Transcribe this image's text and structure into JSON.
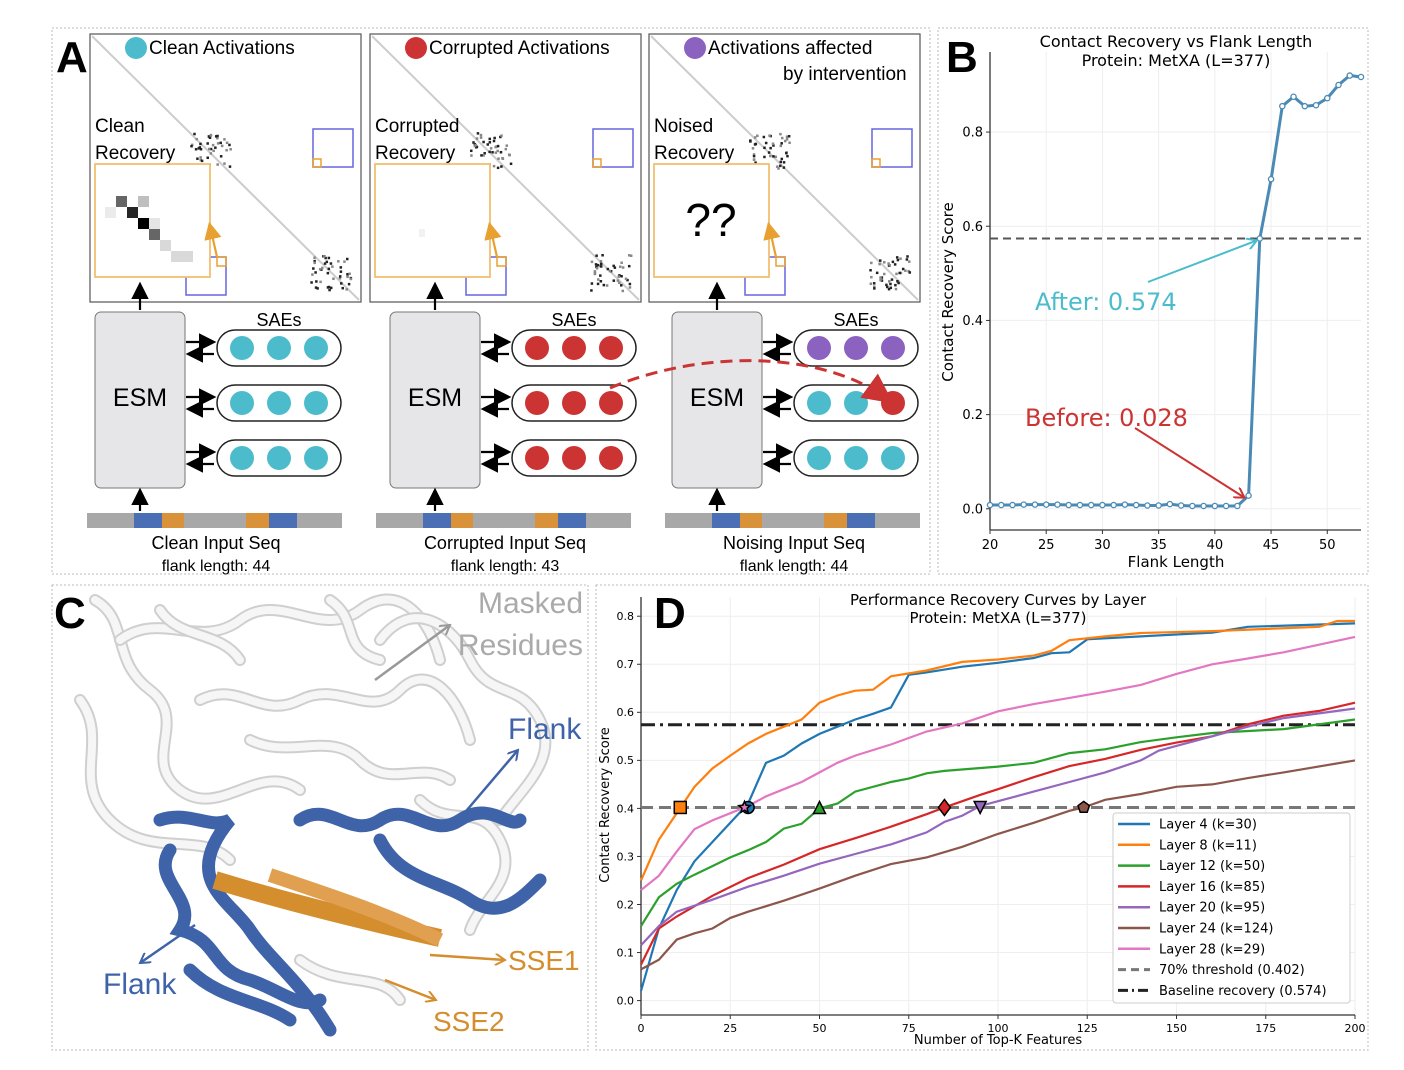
{
  "panel_labels": {
    "a": "A",
    "b": "B",
    "c": "C",
    "d": "D"
  },
  "panel_a": {
    "columns": [
      {
        "title": [
          "Clean Activations"
        ],
        "dot_color": "#4cbccc",
        "recovery_label": [
          "Clean",
          "Recovery"
        ],
        "inset_text": "",
        "esm_label": "ESM",
        "saes_label": "SAEs",
        "sae_rows": [
          [
            "#4cbccc",
            "#4cbccc",
            "#4cbccc"
          ],
          [
            "#4cbccc",
            "#4cbccc",
            "#4cbccc"
          ],
          [
            "#4cbccc",
            "#4cbccc",
            "#4cbccc"
          ]
        ],
        "seq_label": "Clean Input Seq",
        "flank_label": "flank length: 44"
      },
      {
        "title": [
          "Corrupted Activations"
        ],
        "dot_color": "#cc3333",
        "recovery_label": [
          "Corrupted",
          "Recovery"
        ],
        "inset_text": "",
        "esm_label": "ESM",
        "saes_label": "SAEs",
        "sae_rows": [
          [
            "#cc3333",
            "#cc3333",
            "#cc3333"
          ],
          [
            "#cc3333",
            "#cc3333",
            "#cc3333"
          ],
          [
            "#cc3333",
            "#cc3333",
            "#cc3333"
          ]
        ],
        "seq_label": "Corrupted Input Seq",
        "flank_label": "flank length: 43"
      },
      {
        "title": [
          "Activations affected",
          "by intervention"
        ],
        "dot_color": "#8c62c0",
        "recovery_label": [
          "Noised",
          "Recovery"
        ],
        "inset_text": "??",
        "esm_label": "ESM",
        "saes_label": "SAEs",
        "sae_rows": [
          [
            "#8c62c0",
            "#8c62c0",
            "#8c62c0"
          ],
          [
            "#4cbccc",
            "#4cbccc",
            "#cc3333"
          ],
          [
            "#4cbccc",
            "#4cbccc",
            "#4cbccc"
          ]
        ],
        "seq_label": "Noising Input Seq",
        "flank_label": "flank length: 44"
      }
    ],
    "colors": {
      "flank": "#4a6fb5",
      "sse": "#d9923a",
      "seq_bg": "#a8a8a8",
      "intervention_arrow": "#cc3333"
    }
  },
  "panel_c": {
    "labels": {
      "masked": [
        "Masked",
        "Residues"
      ],
      "flank_right": "Flank",
      "flank_left": "Flank",
      "sse1": "SSE1",
      "sse2": "SSE2"
    },
    "colors": {
      "flank": "#3f63a8",
      "sse": "#d58e2e",
      "masked": "#aaaaaa"
    }
  },
  "chart_data": [
    {
      "type": "line",
      "title": [
        "Contact Recovery vs Flank Length",
        "Protein: MetXA (L=377)"
      ],
      "xlabel": "Flank Length",
      "ylabel": "Contact Recovery Score",
      "xlim": [
        20,
        53
      ],
      "ylim": [
        -0.045,
        0.97
      ],
      "xticks": [
        20,
        25,
        30,
        35,
        40,
        45,
        50
      ],
      "yticks": [
        0.0,
        0.2,
        0.4,
        0.6,
        0.8
      ],
      "ytick_labels": [
        "0.0",
        "0.2",
        "0.4",
        "0.6",
        "0.8"
      ],
      "grid": true,
      "color": "#4a8ab5",
      "series": [
        {
          "name": "MetXA",
          "x": [
            20,
            21,
            22,
            23,
            24,
            25,
            26,
            27,
            28,
            29,
            30,
            31,
            32,
            33,
            34,
            35,
            36,
            37,
            38,
            39,
            40,
            41,
            42,
            43,
            44,
            45,
            46,
            47,
            48,
            49,
            50,
            51,
            52,
            53
          ],
          "y": [
            0.008,
            0.008,
            0.008,
            0.009,
            0.009,
            0.009,
            0.009,
            0.008,
            0.008,
            0.008,
            0.008,
            0.008,
            0.009,
            0.008,
            0.007,
            0.007,
            0.01,
            0.007,
            0.006,
            0.006,
            0.006,
            0.006,
            0.006,
            0.028,
            0.574,
            0.7,
            0.855,
            0.875,
            0.855,
            0.857,
            0.872,
            0.9,
            0.92,
            0.917
          ]
        }
      ],
      "hline": {
        "y": 0.574,
        "style": "dashed",
        "color": "#555555"
      },
      "annotations": [
        {
          "text": "After: 0.574",
          "xy": [
            44,
            0.574
          ],
          "color": "#4bbccc"
        },
        {
          "text": "Before: 0.028",
          "xy": [
            42.9,
            0.028
          ],
          "color": "#cc3333"
        }
      ]
    },
    {
      "type": "line",
      "title": [
        "Performance Recovery Curves by Layer",
        "Protein: MetXA (L=377)"
      ],
      "xlabel": "Number of Top-K Features",
      "ylabel": "Contact Recovery Score",
      "xlim": [
        0,
        200
      ],
      "ylim": [
        -0.03,
        0.84
      ],
      "xticks": [
        0,
        25,
        50,
        75,
        100,
        125,
        150,
        175,
        200
      ],
      "yticks": [
        0.0,
        0.1,
        0.2,
        0.3,
        0.4,
        0.5,
        0.6,
        0.7,
        0.8
      ],
      "ytick_labels": [
        "0.0",
        "0.1",
        "0.2",
        "0.3",
        "0.4",
        "0.5",
        "0.6",
        "0.7",
        "0.8"
      ],
      "grid": true,
      "legend": "lower-right",
      "series": [
        {
          "name": "Layer 4 (k=30)",
          "color": "#1f77b4",
          "k": 30,
          "marker": "circle",
          "x": [
            0,
            5,
            10,
            15,
            20,
            25,
            30,
            35,
            40,
            45,
            50,
            55,
            60,
            65,
            70,
            75,
            80,
            90,
            100,
            110,
            115,
            120,
            125,
            140,
            160,
            170,
            200
          ],
          "y": [
            0.02,
            0.15,
            0.23,
            0.29,
            0.33,
            0.37,
            0.41,
            0.495,
            0.51,
            0.535,
            0.555,
            0.57,
            0.585,
            0.597,
            0.61,
            0.678,
            0.683,
            0.695,
            0.703,
            0.713,
            0.723,
            0.725,
            0.752,
            0.758,
            0.766,
            0.778,
            0.785
          ]
        },
        {
          "name": "Layer 8 (k=11)",
          "color": "#ff7f0e",
          "k": 11,
          "marker": "square",
          "x": [
            0,
            5,
            10,
            15,
            20,
            25,
            30,
            35,
            40,
            45,
            50,
            55,
            60,
            65,
            70,
            80,
            90,
            100,
            110,
            115,
            120,
            130,
            140,
            160,
            190,
            195,
            200
          ],
          "y": [
            0.25,
            0.335,
            0.39,
            0.445,
            0.483,
            0.51,
            0.535,
            0.555,
            0.57,
            0.585,
            0.62,
            0.635,
            0.645,
            0.647,
            0.675,
            0.687,
            0.705,
            0.71,
            0.718,
            0.728,
            0.75,
            0.758,
            0.765,
            0.769,
            0.778,
            0.79,
            0.79
          ]
        },
        {
          "name": "Layer 12 (k=50)",
          "color": "#2ca02c",
          "k": 50,
          "marker": "triangle-up",
          "x": [
            0,
            5,
            10,
            15,
            20,
            25,
            30,
            35,
            40,
            45,
            50,
            55,
            60,
            70,
            75,
            80,
            85,
            100,
            110,
            120,
            130,
            140,
            150,
            160,
            180,
            200
          ],
          "y": [
            0.155,
            0.215,
            0.243,
            0.262,
            0.28,
            0.298,
            0.313,
            0.33,
            0.358,
            0.368,
            0.4,
            0.41,
            0.435,
            0.455,
            0.462,
            0.473,
            0.478,
            0.487,
            0.495,
            0.515,
            0.523,
            0.538,
            0.548,
            0.557,
            0.565,
            0.585
          ]
        },
        {
          "name": "Layer 16 (k=85)",
          "color": "#d62728",
          "k": 85,
          "marker": "diamond",
          "x": [
            0,
            5,
            10,
            20,
            30,
            40,
            50,
            60,
            70,
            80,
            85,
            95,
            100,
            110,
            120,
            130,
            140,
            150,
            160,
            170,
            180,
            190,
            200
          ],
          "y": [
            0.075,
            0.15,
            0.175,
            0.218,
            0.255,
            0.283,
            0.315,
            0.338,
            0.362,
            0.388,
            0.402,
            0.428,
            0.44,
            0.465,
            0.488,
            0.503,
            0.522,
            0.537,
            0.55,
            0.575,
            0.593,
            0.603,
            0.62
          ]
        },
        {
          "name": "Layer 20 (k=95)",
          "color": "#9467bd",
          "k": 95,
          "marker": "triangle-down",
          "x": [
            0,
            5,
            10,
            20,
            30,
            40,
            50,
            60,
            70,
            80,
            85,
            90,
            95,
            100,
            110,
            120,
            130,
            140,
            145,
            160,
            170,
            180,
            200
          ],
          "y": [
            0.115,
            0.155,
            0.185,
            0.21,
            0.237,
            0.26,
            0.285,
            0.305,
            0.325,
            0.35,
            0.372,
            0.385,
            0.405,
            0.415,
            0.435,
            0.455,
            0.475,
            0.5,
            0.52,
            0.55,
            0.57,
            0.588,
            0.608
          ]
        },
        {
          "name": "Layer 24 (k=124)",
          "color": "#8c564b",
          "k": 124,
          "marker": "pentagon",
          "x": [
            0,
            5,
            10,
            15,
            20,
            25,
            30,
            40,
            50,
            60,
            70,
            80,
            90,
            100,
            110,
            120,
            124,
            130,
            140,
            150,
            160,
            170,
            180,
            200
          ],
          "y": [
            0.065,
            0.085,
            0.127,
            0.14,
            0.15,
            0.172,
            0.185,
            0.208,
            0.233,
            0.26,
            0.284,
            0.298,
            0.32,
            0.347,
            0.37,
            0.395,
            0.402,
            0.418,
            0.43,
            0.445,
            0.45,
            0.463,
            0.475,
            0.5
          ]
        },
        {
          "name": "Layer 28 (k=29)",
          "color": "#e377c2",
          "k": 29,
          "marker": "star",
          "x": [
            0,
            5,
            10,
            15,
            20,
            25,
            30,
            35,
            40,
            45,
            50,
            55,
            60,
            70,
            80,
            90,
            100,
            110,
            120,
            130,
            140,
            150,
            160,
            170,
            180,
            200
          ],
          "y": [
            0.23,
            0.26,
            0.31,
            0.357,
            0.375,
            0.39,
            0.405,
            0.425,
            0.44,
            0.455,
            0.475,
            0.495,
            0.51,
            0.533,
            0.56,
            0.577,
            0.602,
            0.617,
            0.63,
            0.643,
            0.657,
            0.68,
            0.7,
            0.712,
            0.725,
            0.757
          ]
        }
      ],
      "hlines": [
        {
          "name": "70% threshold (0.402)",
          "y": 0.402,
          "style": "dashed",
          "color": "#777777"
        },
        {
          "name": "Baseline recovery (0.574)",
          "y": 0.574,
          "style": "dashdot",
          "color": "#222222"
        }
      ]
    }
  ]
}
